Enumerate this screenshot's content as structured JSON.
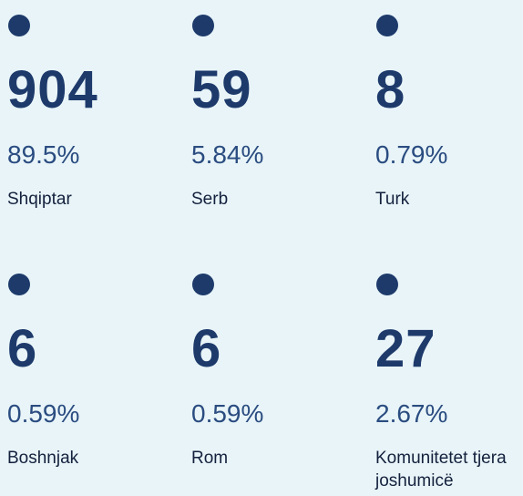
{
  "items": [
    {
      "count": 904,
      "percent": "89.5%",
      "label": "Shqiptar"
    },
    {
      "count": 59,
      "percent": "5.84%",
      "label": "Serb"
    },
    {
      "count": 8,
      "percent": "0.79%",
      "label": "Turk"
    },
    {
      "count": 6,
      "percent": "0.59%",
      "label": "Boshnjak"
    },
    {
      "count": 6,
      "percent": "0.59%",
      "label": "Rom"
    },
    {
      "count": 27,
      "percent": "2.67%",
      "label": "Komunitetet tjera joshumicë"
    }
  ]
}
